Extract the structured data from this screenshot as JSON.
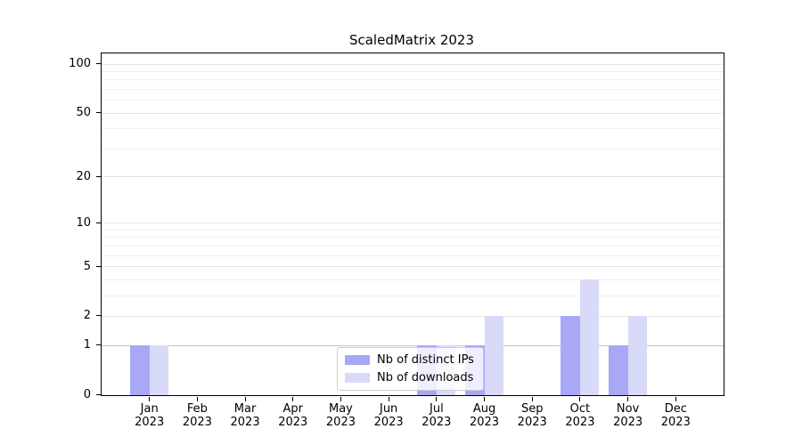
{
  "chart_data": {
    "type": "bar",
    "title": "ScaledMatrix 2023",
    "categories": [
      "Jan",
      "Feb",
      "Mar",
      "Apr",
      "May",
      "Jun",
      "Jul",
      "Aug",
      "Sep",
      "Oct",
      "Nov",
      "Dec"
    ],
    "category_year": "2023",
    "series": [
      {
        "name": "Nb of distinct IPs",
        "color": "#a9a8f7",
        "values": [
          1,
          0,
          0,
          0,
          0,
          0,
          1,
          1,
          0,
          2,
          1,
          0
        ]
      },
      {
        "name": "Nb of downloads",
        "color": "#d9d9f8",
        "values": [
          1,
          0,
          0,
          0,
          0,
          0,
          1,
          2,
          0,
          4,
          2,
          0
        ]
      }
    ],
    "yscale": "log1p",
    "yticks_major": [
      0,
      1,
      2,
      5,
      10,
      20,
      50,
      100
    ],
    "yticks_minor": [
      3,
      4,
      6,
      7,
      8,
      9,
      30,
      40,
      60,
      70,
      80,
      90
    ],
    "ylim": [
      0,
      116
    ],
    "grid": "horizontal",
    "legend_position": "lower center",
    "emphasis_gridline_value": 1
  }
}
